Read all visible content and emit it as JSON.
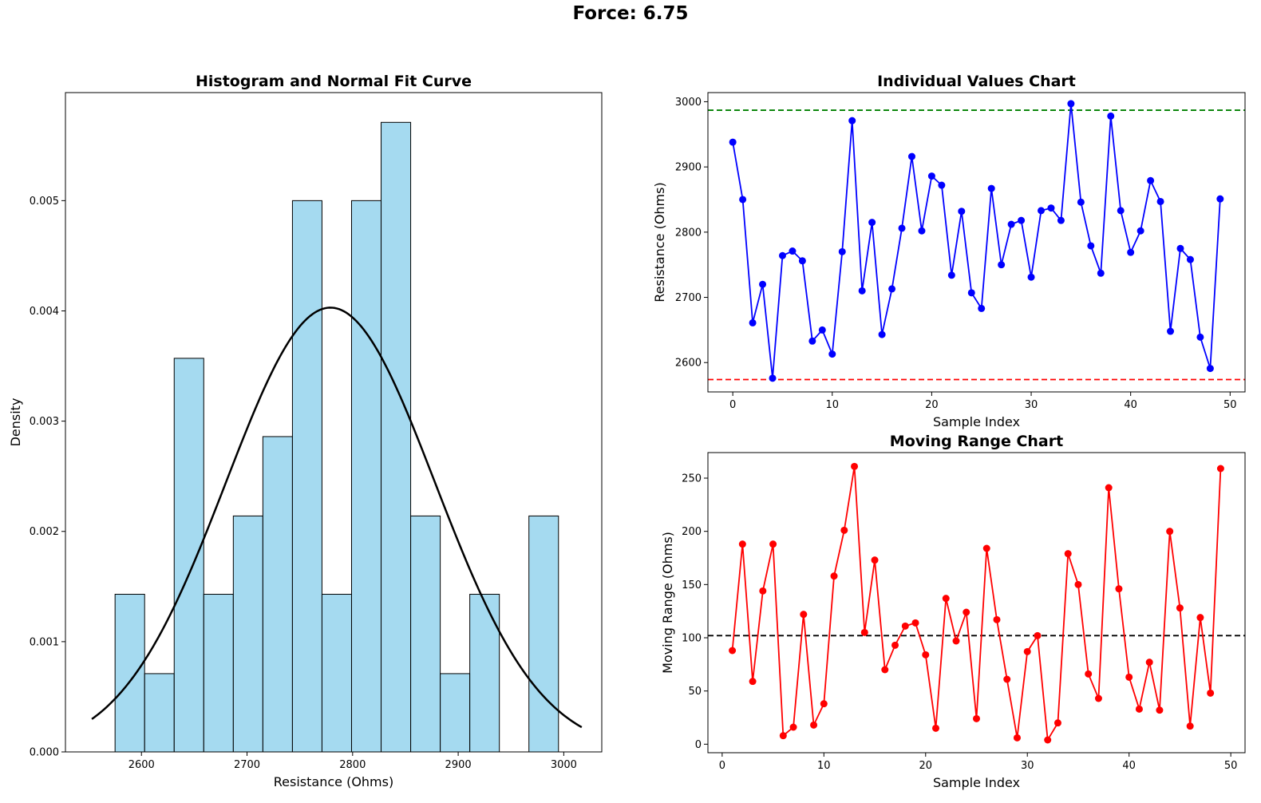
{
  "suptitle": "Force: 6.75",
  "chart_data": [
    {
      "type": "bar",
      "title": "Histogram and Normal Fit Curve",
      "xlabel": "Resistance (Ohms)",
      "ylabel": "Density",
      "xlim": [
        2528,
        3036
      ],
      "ylim": [
        0,
        0.00598
      ],
      "xticks": [
        2600,
        2700,
        2800,
        2900,
        3000
      ],
      "yticks": [
        0.0,
        0.001,
        0.002,
        0.003,
        0.004,
        0.005
      ],
      "ytick_labels": [
        "0.000",
        "0.001",
        "0.002",
        "0.003",
        "0.004",
        "0.005"
      ],
      "bin_edges": [
        2575,
        2603,
        2631,
        2659,
        2687,
        2715,
        2743,
        2771,
        2799,
        2827,
        2855,
        2883,
        2911,
        2939,
        2967,
        2995
      ],
      "values": [
        0.00143,
        0.00071,
        0.00357,
        0.00143,
        0.00214,
        0.00286,
        0.005,
        0.00143,
        0.005,
        0.00571,
        0.00214,
        0.00071,
        0.00143,
        0,
        0.00214
      ],
      "bar_color": "#87ceeb",
      "fit_curve": {
        "mean": 2779,
        "std": 99,
        "x_range": [
          2553,
          3017
        ],
        "color": "#000000"
      }
    },
    {
      "type": "line",
      "title": "Individual Values Chart",
      "xlabel": "Sample Index",
      "ylabel": "Resistance (Ohms)",
      "xlim": [
        -2.5,
        51.5
      ],
      "ylim": [
        2555,
        3014
      ],
      "xticks": [
        0,
        10,
        20,
        30,
        40,
        50
      ],
      "yticks": [
        2600,
        2700,
        2800,
        2900,
        3000
      ],
      "x": [
        0,
        1,
        2,
        3,
        4,
        5,
        6,
        7,
        8,
        9,
        10,
        11,
        12,
        13,
        14,
        15,
        16,
        17,
        18,
        19,
        20,
        21,
        22,
        23,
        24,
        25,
        26,
        27,
        28,
        29,
        30,
        31,
        32,
        33,
        34,
        35,
        36,
        37,
        38,
        39,
        40,
        41,
        42,
        43,
        44,
        45,
        46,
        47,
        48,
        49
      ],
      "series": [
        {
          "values": [
            2938,
            2850,
            2661,
            2720,
            2576,
            2764,
            2771,
            2756,
            2633,
            2650,
            2613,
            2770,
            2971,
            2710,
            2815,
            2643,
            2713,
            2806,
            2916,
            2802,
            2886,
            2872,
            2734,
            2832,
            2707,
            2683,
            2867,
            2750,
            2812,
            2818,
            2731,
            2833,
            2837,
            2818,
            2997,
            2846,
            2779,
            2737,
            2978,
            2833,
            2769,
            2802,
            2879,
            2847,
            2648,
            2775,
            2758,
            2639,
            2591,
            2851
          ],
          "color": "#0000ff"
        }
      ],
      "reference_lines": [
        {
          "y": 2987,
          "color": "#008000",
          "style": "dashed"
        },
        {
          "y": 2574,
          "color": "#ff0000",
          "style": "dashed"
        }
      ]
    },
    {
      "type": "line",
      "title": "Moving Range Chart",
      "xlabel": "Sample Index",
      "ylabel": "Moving Range (Ohms)",
      "xlim": [
        -1.4,
        51.4
      ],
      "ylim": [
        -8,
        274
      ],
      "xticks": [
        0,
        10,
        20,
        30,
        40,
        50
      ],
      "yticks": [
        0,
        50,
        100,
        150,
        200,
        250
      ],
      "x": [
        1,
        2,
        3,
        4,
        5,
        6,
        7,
        8,
        9,
        10,
        11,
        12,
        13,
        14,
        15,
        16,
        17,
        18,
        19,
        20,
        21,
        22,
        23,
        24,
        25,
        26,
        27,
        28,
        29,
        30,
        31,
        32,
        33,
        34,
        35,
        36,
        37,
        38,
        39,
        40,
        41,
        42,
        43,
        44,
        45,
        46,
        47,
        48,
        49
      ],
      "series": [
        {
          "values": [
            88,
            188,
            59,
            144,
            188,
            8,
            16,
            122,
            18,
            38,
            158,
            201,
            261,
            105,
            173,
            70,
            93,
            111,
            114,
            84,
            15,
            137,
            97,
            124,
            24,
            184,
            117,
            61,
            6,
            87,
            102,
            4,
            20,
            179,
            150,
            66,
            43,
            241,
            146,
            63,
            33,
            77,
            32,
            200,
            128,
            17,
            119,
            48,
            259
          ],
          "color": "#ff0000"
        }
      ],
      "reference_lines": [
        {
          "y": 102,
          "color": "#000000",
          "style": "dashed"
        }
      ]
    }
  ]
}
